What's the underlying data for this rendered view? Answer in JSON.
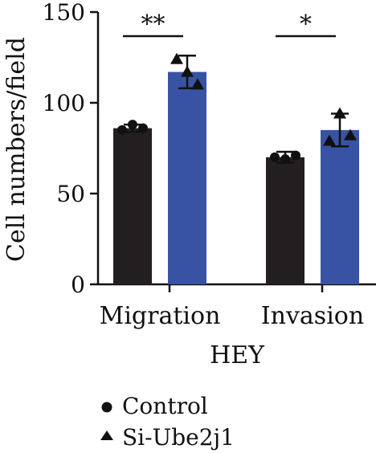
{
  "chart_data": {
    "type": "bar",
    "title": "",
    "xlabel": "HEY",
    "ylabel": "Cell numbers/field",
    "ylim": [
      0,
      150
    ],
    "yticks": [
      0,
      50,
      100,
      150
    ],
    "categories": [
      "Migration",
      "Invasion"
    ],
    "grid": false,
    "legend_position": "bottom-left",
    "series": [
      {
        "name": "Control",
        "marker": "circle",
        "color": "#231f20",
        "values": [
          86,
          70
        ],
        "error": [
          2,
          3
        ],
        "points": [
          [
            85,
            88,
            86
          ],
          [
            70,
            69,
            71
          ]
        ]
      },
      {
        "name": "Si-Ube2j1",
        "marker": "triangle",
        "color": "#3953a4",
        "values": [
          117,
          85
        ],
        "error": [
          9,
          9
        ],
        "points": [
          [
            124,
            117,
            110
          ],
          [
            79,
            94,
            82
          ]
        ]
      }
    ],
    "significance": [
      {
        "category": "Migration",
        "label": "**"
      },
      {
        "category": "Invasion",
        "label": "*"
      }
    ]
  }
}
